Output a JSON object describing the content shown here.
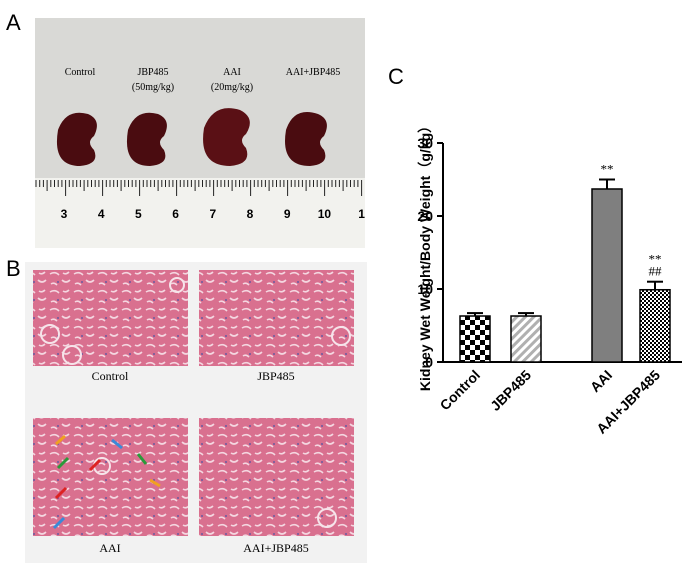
{
  "panel_a": {
    "letter": "A",
    "labels": [
      "Control",
      "JBP485",
      "(50mg/kg)",
      "AAI",
      "(20mg/kg)",
      "AAI+JBP485"
    ],
    "ruler": [
      3,
      4,
      5,
      6,
      7,
      8,
      9,
      10,
      1
    ]
  },
  "panel_b": {
    "letter": "B",
    "labels": [
      "Control",
      "JBP485",
      "AAI",
      "AAI+JBP485"
    ]
  },
  "panel_c": {
    "letter": "C"
  },
  "chart_data": {
    "type": "bar",
    "y_label": "Kidney Wet Weight/Body Weight（g/kg）",
    "categories": [
      "Control",
      "JBP485",
      "AAI",
      "AAI+JBP485"
    ],
    "values": [
      6.3,
      6.3,
      23.7,
      9.9
    ],
    "errors": [
      0.4,
      0.4,
      1.3,
      1.1
    ],
    "annotations": [
      [],
      [],
      [
        "**"
      ],
      [
        "**",
        "##"
      ]
    ],
    "patterns": [
      "checker",
      "hatch",
      "solid",
      "fine-checker"
    ],
    "colors": [
      "#000000",
      "#b0b0b0",
      "#7f7f7f",
      "#000000"
    ],
    "ylim": [
      0,
      30
    ],
    "yticks": [
      0,
      10,
      20,
      30
    ]
  }
}
